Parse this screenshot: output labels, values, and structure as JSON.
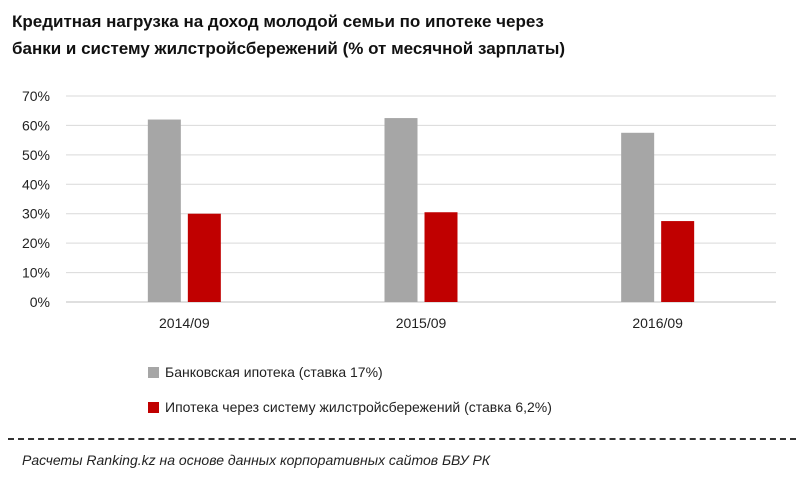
{
  "title_lines": [
    "Кредитная  нагрузка  на доход молодой семьи  по ипотеке через",
    "банки  и систему  жилстройсбережений  (% от месячной  зарплаты)"
  ],
  "source_note": "Расчеты Ranking.kz на основе данных  корпоративных  сайтов БВУ РК",
  "chart_data": {
    "type": "bar",
    "title": "Кредитная  нагрузка  на доход молодой семьи  по ипотеке через банки  и систему  жилстройсбережений  (% от месячной  зарплаты)",
    "categories": [
      "2014/09",
      "2015/09",
      "2016/09"
    ],
    "series": [
      {
        "name": "Банковская ипотека (ставка 17%)",
        "values": [
          62,
          62.5,
          57.5
        ],
        "color": "#a6a6a6"
      },
      {
        "name": "Ипотека через систему жилстройсбережений (ставка 6,2%)",
        "values": [
          30,
          30.5,
          27.5
        ],
        "color": "#c00000"
      }
    ],
    "ylim": [
      0,
      70
    ],
    "yticks": [
      "0%",
      "10%",
      "20%",
      "30%",
      "40%",
      "50%",
      "60%",
      "70%"
    ],
    "xlabel": "",
    "ylabel": "",
    "grid": true,
    "legend_position": "bottom-left"
  }
}
